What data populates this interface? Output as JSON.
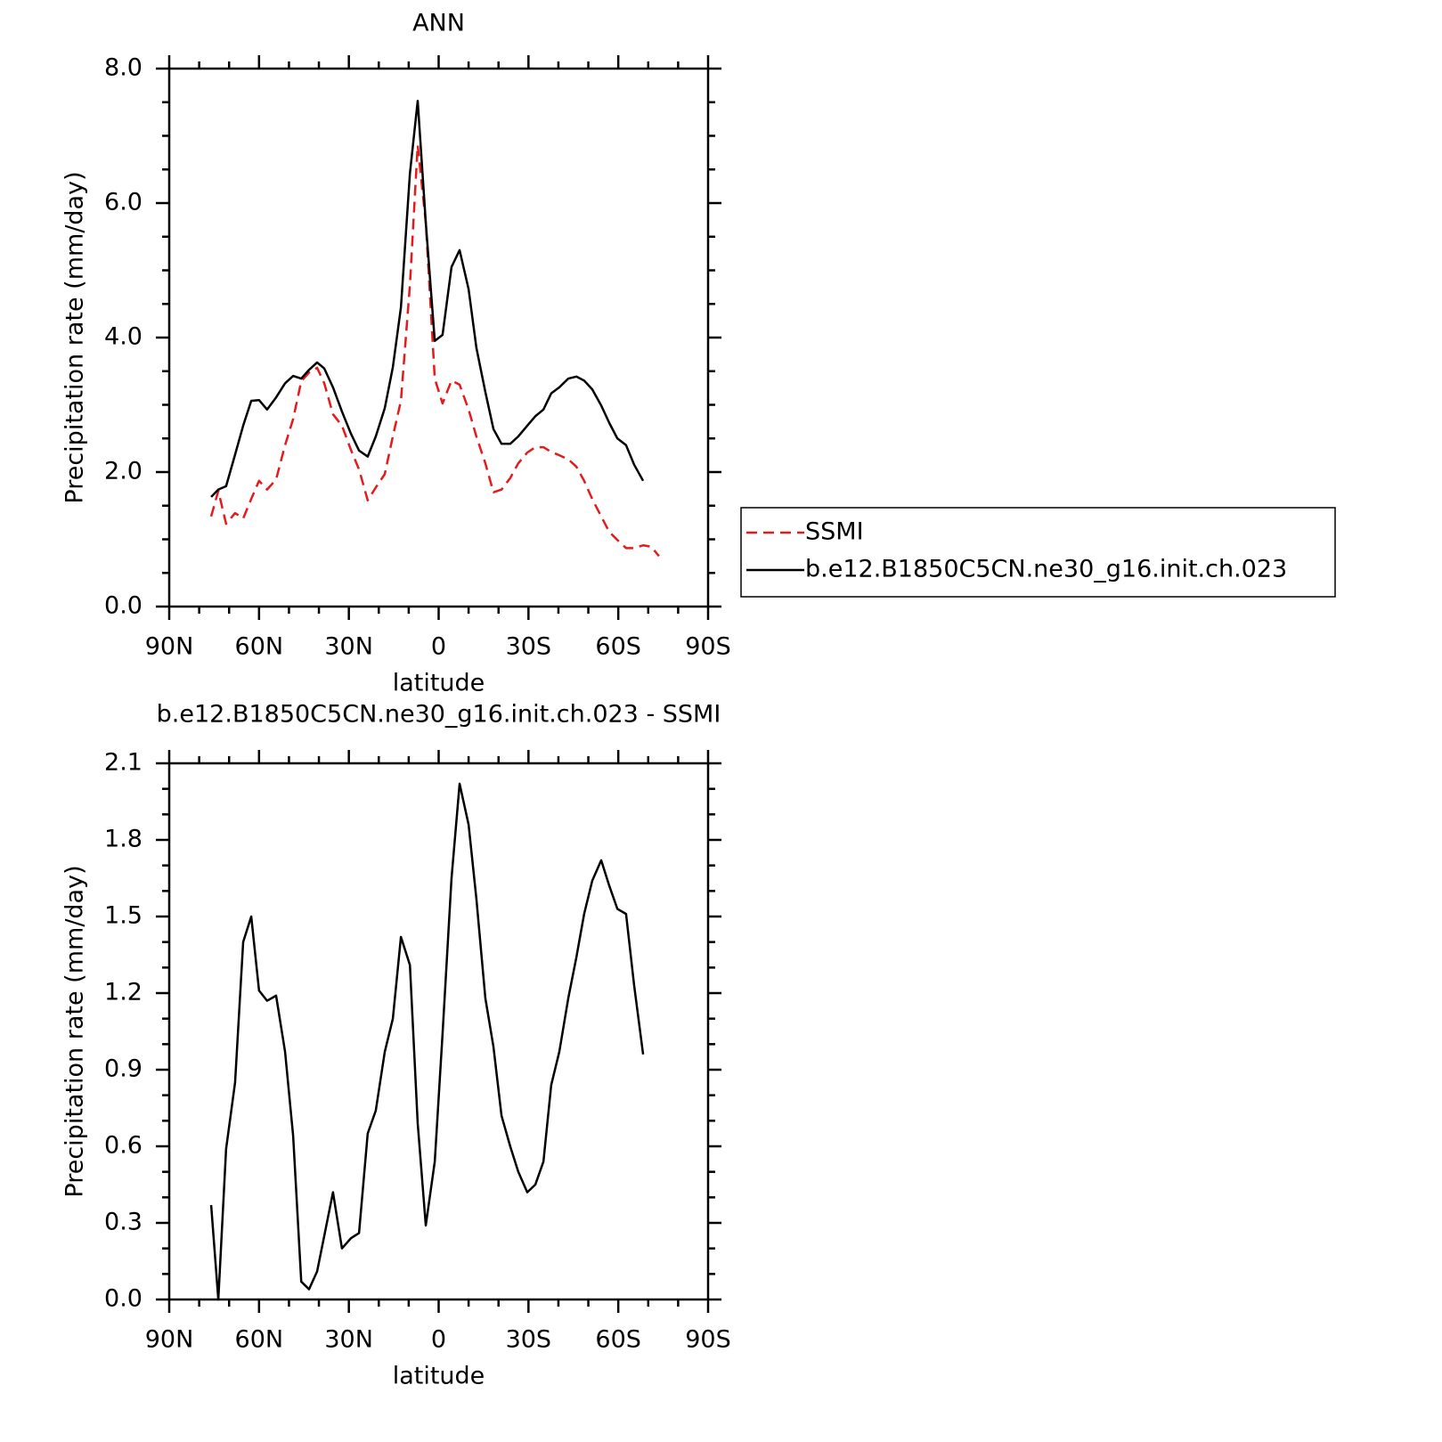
{
  "chart_data": [
    {
      "type": "line",
      "title": "ANN",
      "xlabel": "latitude",
      "ylabel": "Precipitation rate (mm/day)",
      "xlim": [
        90,
        -90
      ],
      "xticks": [
        {
          "value": 90,
          "label": "90N"
        },
        {
          "value": 60,
          "label": "60N"
        },
        {
          "value": 30,
          "label": "30N"
        },
        0,
        {
          "value": -30,
          "label": "30S"
        },
        {
          "value": -60,
          "label": "60S"
        },
        {
          "value": -90,
          "label": "90S"
        }
      ],
      "xminor_ticks": [
        80,
        70,
        50,
        40,
        20,
        10,
        -10,
        -20,
        -40,
        -50,
        -70,
        -80
      ],
      "ylim": [
        0,
        8
      ],
      "yticks": [
        {
          "value": 0,
          "label": "0.0"
        },
        {
          "value": 2,
          "label": "2.0"
        },
        {
          "value": 4,
          "label": "4.0"
        },
        {
          "value": 6,
          "label": "6.0"
        },
        {
          "value": 8,
          "label": "8.0"
        }
      ],
      "yminor_ticks": [
        0.5,
        1,
        1.5,
        2.5,
        3,
        3.5,
        4.5,
        5,
        5.5,
        6.5,
        7,
        7.5
      ],
      "legend": "right",
      "series": [
        {
          "name": "SSMI",
          "color": "#e41a1c",
          "linestyle": "dashed",
          "x": [
            76,
            73.6,
            71,
            68,
            65.3,
            62.6,
            60,
            57.3,
            54.3,
            51.3,
            48.6,
            45.9,
            43.3,
            40.6,
            38.2,
            35.3,
            32.3,
            29.3,
            26.6,
            23.7,
            21,
            18,
            15.3,
            12.6,
            9.6,
            7,
            4.3,
            1.3,
            -1.3,
            -4.3,
            -7,
            -10,
            -12.6,
            -15.6,
            -18.3,
            -21,
            -23.9,
            -26.6,
            -29.6,
            -32.3,
            -35,
            -37.6,
            -40.3,
            -43.3,
            -46,
            -48.6,
            -51.3,
            -54.3,
            -57,
            -59.7,
            -62.6,
            -65.3,
            -68.3,
            -71,
            -73.6
          ],
          "values": [
            1.34,
            1.72,
            1.23,
            1.39,
            1.31,
            1.6,
            1.87,
            1.74,
            1.89,
            2.4,
            2.79,
            3.35,
            3.48,
            3.55,
            3.32,
            2.86,
            2.69,
            2.33,
            2.04,
            1.58,
            1.77,
            1.97,
            2.53,
            3.06,
            4.78,
            6.86,
            5.71,
            3.39,
            3.02,
            3.36,
            3.3,
            2.93,
            2.53,
            2.13,
            1.7,
            1.74,
            1.91,
            2.13,
            2.29,
            2.37,
            2.37,
            2.3,
            2.25,
            2.19,
            2.08,
            1.87,
            1.6,
            1.34,
            1.11,
            0.99,
            0.87,
            0.87,
            0.91,
            0.89,
            0.75
          ]
        },
        {
          "name": "b.e12.B1850C5CN.ne30_g16.init.ch.023",
          "color": "#000000",
          "linestyle": "solid",
          "x": [
            76,
            73.6,
            71,
            68,
            65.3,
            62.6,
            60,
            57.3,
            54.3,
            51.3,
            48.6,
            45.9,
            43.3,
            40.6,
            38.2,
            35.3,
            32.3,
            29.3,
            26.6,
            23.7,
            21,
            18,
            15.3,
            12.6,
            9.6,
            7,
            4.3,
            1.3,
            -1.3,
            -4.3,
            -7,
            -10,
            -12.6,
            -15.6,
            -18.3,
            -21,
            -23.9,
            -26.6,
            -29.6,
            -32.3,
            -35,
            -37.6,
            -40.3,
            -43.3,
            -46,
            -48.6,
            -51.3,
            -54.3,
            -57,
            -59.7,
            -62.6,
            -65.3,
            -68.3
          ],
          "values": [
            1.63,
            1.74,
            1.79,
            2.26,
            2.69,
            3.06,
            3.07,
            2.93,
            3.11,
            3.32,
            3.43,
            3.39,
            3.52,
            3.63,
            3.54,
            3.26,
            2.9,
            2.57,
            2.32,
            2.23,
            2.53,
            2.95,
            3.56,
            4.45,
            6.44,
            7.52,
            5.71,
            3.95,
            4.04,
            5.05,
            5.3,
            4.72,
            3.85,
            3.19,
            2.64,
            2.42,
            2.42,
            2.53,
            2.69,
            2.83,
            2.93,
            3.17,
            3.26,
            3.39,
            3.42,
            3.36,
            3.23,
            2.99,
            2.73,
            2.5,
            2.4,
            2.11,
            1.87
          ]
        }
      ]
    },
    {
      "type": "line",
      "title": "b.e12.B1850C5CN.ne30_g16.init.ch.023 - SSMI",
      "xlabel": "latitude",
      "ylabel": "Precipitation rate (mm/day)",
      "xlim": [
        90,
        -90
      ],
      "xticks": [
        {
          "value": 90,
          "label": "90N"
        },
        {
          "value": 60,
          "label": "60N"
        },
        {
          "value": 30,
          "label": "30N"
        },
        0,
        {
          "value": -30,
          "label": "30S"
        },
        {
          "value": -60,
          "label": "60S"
        },
        {
          "value": -90,
          "label": "90S"
        }
      ],
      "xminor_ticks": [
        80,
        70,
        50,
        40,
        20,
        10,
        -10,
        -20,
        -40,
        -50,
        -70,
        -80
      ],
      "ylim": [
        0,
        2.1
      ],
      "yticks": [
        {
          "value": 0,
          "label": "0.0"
        },
        {
          "value": 0.3,
          "label": "0.3"
        },
        {
          "value": 0.6,
          "label": "0.6"
        },
        {
          "value": 0.9,
          "label": "0.9"
        },
        {
          "value": 1.2,
          "label": "1.2"
        },
        {
          "value": 1.5,
          "label": "1.5"
        },
        {
          "value": 1.8,
          "label": "1.8"
        },
        {
          "value": 2.1,
          "label": "2.1"
        }
      ],
      "yminor_ticks": [
        0.1,
        0.2,
        0.4,
        0.5,
        0.7,
        0.8,
        1,
        1.1,
        1.3,
        1.4,
        1.6,
        1.7,
        1.9,
        2
      ],
      "series": [
        {
          "color": "#000000",
          "linestyle": "solid",
          "x": [
            76,
            73.6,
            71,
            68,
            65.3,
            62.6,
            60,
            57.3,
            54.3,
            51.3,
            48.6,
            45.9,
            43.3,
            40.6,
            38.2,
            35.3,
            32.3,
            29.3,
            26.6,
            23.7,
            21,
            18,
            15.3,
            12.6,
            9.6,
            7,
            4.3,
            1.3,
            -1.3,
            -4.3,
            -7,
            -10,
            -12.6,
            -15.6,
            -18.3,
            -21,
            -23.9,
            -26.6,
            -29.6,
            -32.3,
            -35,
            -37.6,
            -40.3,
            -43.3,
            -46,
            -48.6,
            -51.3,
            -54.3,
            -57,
            -59.7,
            -62.6,
            -65.3,
            -68.3
          ],
          "values": [
            0.37,
            0,
            0.59,
            0.85,
            1.4,
            1.5,
            1.21,
            1.17,
            1.19,
            0.97,
            0.64,
            0.07,
            0.04,
            0.11,
            0.25,
            0.42,
            0.2,
            0.24,
            0.26,
            0.65,
            0.74,
            0.97,
            1.1,
            1.42,
            1.31,
            0.69,
            0.29,
            0.54,
            1.04,
            1.65,
            2.02,
            1.86,
            1.57,
            1.18,
            0.99,
            0.72,
            0.6,
            0.5,
            0.42,
            0.45,
            0.54,
            0.84,
            0.97,
            1.18,
            1.34,
            1.51,
            1.64,
            1.72,
            1.62,
            1.53,
            1.51,
            1.23,
            0.96
          ]
        }
      ]
    }
  ]
}
